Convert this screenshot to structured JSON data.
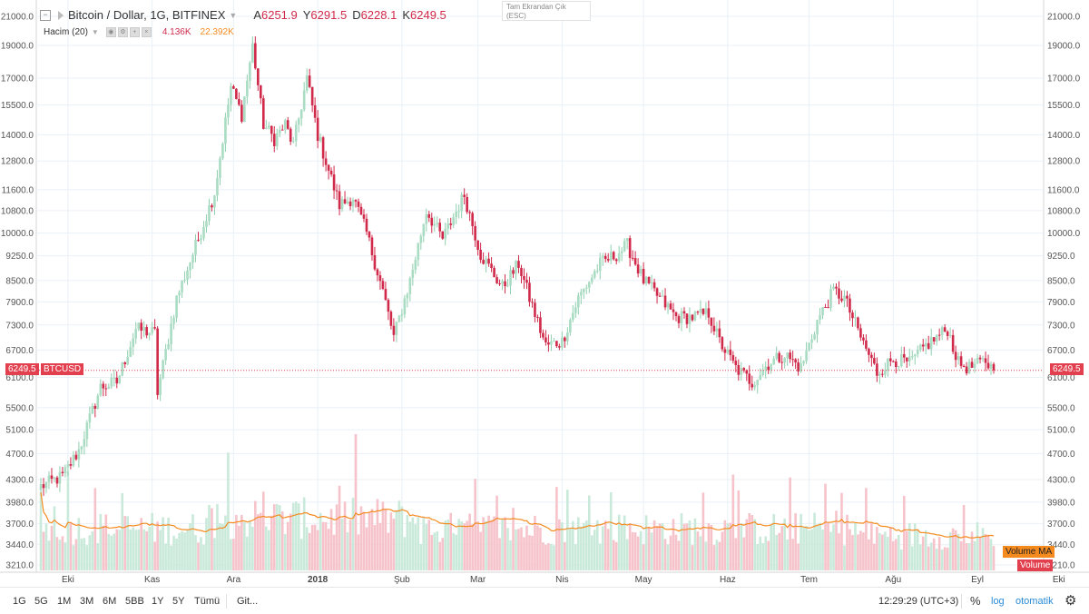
{
  "legend": {
    "title": "Bitcoin / Dollar, 1G, BITFINEX",
    "ohlc": [
      {
        "k": "A",
        "v": "6251.9"
      },
      {
        "k": "Y",
        "v": "6291.5"
      },
      {
        "k": "D",
        "v": "6228.1"
      },
      {
        "k": "K",
        "v": "6249.5"
      }
    ],
    "volume_label": "Hacim (20)",
    "volume_value": "4.136K",
    "volume_ma_value": "22.392K"
  },
  "exit_fullscreen": {
    "line1": "Tam Ekrandan Çık",
    "line2": "(ESC)"
  },
  "price_tag": "6249.5",
  "symbol_tag": "BTCUSD",
  "volume_ma_tag": "Volume MA",
  "volume_tag": "Volume",
  "bottom": {
    "timeframes": [
      "1G",
      "5G",
      "1M",
      "3M",
      "6M",
      "5BB",
      "1Y",
      "5Y",
      "Tümü"
    ],
    "goto": "Git...",
    "clock": "12:29:29 (UTC+3)",
    "percent": "%",
    "log": "log",
    "auto": "otomatik"
  },
  "colors": {
    "up": "#a9dcc3",
    "down": "#d0294a",
    "vol_up": "#c9e9da",
    "vol_down": "#f6c3cb",
    "vma": "#f58a1f",
    "grid": "#e9f0f6",
    "price_line": "#e2404f"
  },
  "chart_data": {
    "type": "candlestick",
    "log_scale": true,
    "price_axis_ticks": [
      21000.0,
      19000.0,
      17000.0,
      15500.0,
      14000.0,
      12800.0,
      11600.0,
      10800.0,
      10000.0,
      9250.0,
      8500.0,
      7900.0,
      7300.0,
      6700.0,
      6100.0,
      5500.0,
      5100.0,
      4700.0,
      4300.0,
      3980.0,
      3700.0,
      3440.0,
      3210.0
    ],
    "time_axis_labels": [
      "Eki",
      "Kas",
      "Ara",
      "2018",
      "Şub",
      "Mar",
      "Nis",
      "May",
      "Haz",
      "Tem",
      "Ağu",
      "Eyl",
      "Eki"
    ],
    "last_price": 6249.5,
    "close_anchors": [
      {
        "day": 0,
        "close": 4200
      },
      {
        "day": 8,
        "close": 4350
      },
      {
        "day": 14,
        "close": 4750
      },
      {
        "day": 22,
        "close": 5900
      },
      {
        "day": 28,
        "close": 6000
      },
      {
        "day": 35,
        "close": 7200
      },
      {
        "day": 42,
        "close": 7100
      },
      {
        "day": 43,
        "close": 5800
      },
      {
        "day": 50,
        "close": 8000
      },
      {
        "day": 58,
        "close": 9800
      },
      {
        "day": 64,
        "close": 11500
      },
      {
        "day": 70,
        "close": 16500
      },
      {
        "day": 74,
        "close": 15000
      },
      {
        "day": 78,
        "close": 19000
      },
      {
        "day": 82,
        "close": 14500
      },
      {
        "day": 86,
        "close": 13800
      },
      {
        "day": 90,
        "close": 14500
      },
      {
        "day": 93,
        "close": 13500
      },
      {
        "day": 98,
        "close": 17000
      },
      {
        "day": 102,
        "close": 14000
      },
      {
        "day": 110,
        "close": 11000
      },
      {
        "day": 115,
        "close": 11300
      },
      {
        "day": 120,
        "close": 10000
      },
      {
        "day": 126,
        "close": 8200
      },
      {
        "day": 130,
        "close": 7000
      },
      {
        "day": 136,
        "close": 8500
      },
      {
        "day": 142,
        "close": 10800
      },
      {
        "day": 148,
        "close": 9800
      },
      {
        "day": 156,
        "close": 11400
      },
      {
        "day": 162,
        "close": 9300
      },
      {
        "day": 170,
        "close": 8300
      },
      {
        "day": 176,
        "close": 9000
      },
      {
        "day": 180,
        "close": 8000
      },
      {
        "day": 186,
        "close": 6800
      },
      {
        "day": 192,
        "close": 6900
      },
      {
        "day": 198,
        "close": 8000
      },
      {
        "day": 206,
        "close": 9000
      },
      {
        "day": 212,
        "close": 9300
      },
      {
        "day": 216,
        "close": 9600
      },
      {
        "day": 222,
        "close": 8500
      },
      {
        "day": 228,
        "close": 8000
      },
      {
        "day": 234,
        "close": 7500
      },
      {
        "day": 240,
        "close": 7500
      },
      {
        "day": 246,
        "close": 7600
      },
      {
        "day": 250,
        "close": 6900
      },
      {
        "day": 256,
        "close": 6300
      },
      {
        "day": 262,
        "close": 6000
      },
      {
        "day": 268,
        "close": 6400
      },
      {
        "day": 274,
        "close": 6600
      },
      {
        "day": 280,
        "close": 6300
      },
      {
        "day": 286,
        "close": 7400
      },
      {
        "day": 292,
        "close": 8200
      },
      {
        "day": 296,
        "close": 8000
      },
      {
        "day": 302,
        "close": 7000
      },
      {
        "day": 308,
        "close": 6200
      },
      {
        "day": 314,
        "close": 6500
      },
      {
        "day": 320,
        "close": 6400
      },
      {
        "day": 326,
        "close": 6800
      },
      {
        "day": 330,
        "close": 7000
      },
      {
        "day": 334,
        "close": 7200
      },
      {
        "day": 338,
        "close": 6400
      },
      {
        "day": 342,
        "close": 6300
      },
      {
        "day": 348,
        "close": 6450
      },
      {
        "day": 351,
        "close": 6249.5
      }
    ],
    "volume_axis_ticks": [
      3210.0,
      3440.0,
      3700.0,
      3980.0,
      4300.0,
      4700.0,
      5100.0,
      5500.0,
      6100.0
    ],
    "volume_ma_level_approx": 3500
  }
}
